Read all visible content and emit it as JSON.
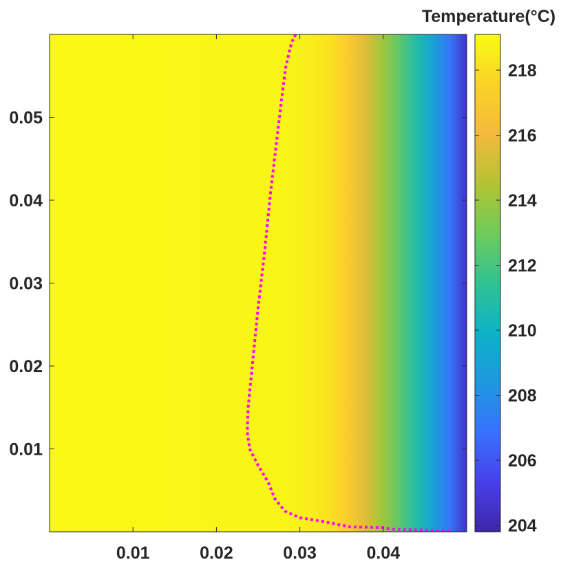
{
  "chart_data": {
    "type": "heatmap",
    "title": "",
    "xlabel": "",
    "ylabel": "",
    "xlim": [
      0,
      0.05
    ],
    "ylim": [
      0,
      0.06
    ],
    "x_ticks": [
      0.01,
      0.02,
      0.03,
      0.04
    ],
    "x_tick_labels": [
      "0.01",
      "0.02",
      "0.03",
      "0.04"
    ],
    "y_ticks": [
      0.01,
      0.02,
      0.03,
      0.04,
      0.05
    ],
    "y_tick_labels": [
      "0.01",
      "0.02",
      "0.03",
      "0.04",
      "0.05"
    ],
    "colorbar": {
      "title": "Temperature(°C)",
      "range": [
        203.8,
        219.1
      ],
      "ticks": [
        204,
        206,
        208,
        210,
        212,
        214,
        216,
        218
      ],
      "tick_labels": [
        "204",
        "206",
        "208",
        "210",
        "212",
        "214",
        "216",
        "218"
      ],
      "colormap": "parula"
    },
    "temperature_profile_along_x": [
      {
        "x": 0.0,
        "t": 219.0
      },
      {
        "x": 0.028,
        "t": 218.9
      },
      {
        "x": 0.032,
        "t": 218.5
      },
      {
        "x": 0.034,
        "t": 218.0
      },
      {
        "x": 0.036,
        "t": 217.0
      },
      {
        "x": 0.038,
        "t": 215.5
      },
      {
        "x": 0.04,
        "t": 214.0
      },
      {
        "x": 0.042,
        "t": 212.5
      },
      {
        "x": 0.044,
        "t": 210.8
      },
      {
        "x": 0.046,
        "t": 209.0
      },
      {
        "x": 0.048,
        "t": 207.0
      },
      {
        "x": 0.05,
        "t": 204.5
      }
    ],
    "boundary_curve": {
      "color": "#ff00ff",
      "style": "dotted",
      "points": [
        [
          0.0295,
          0.06
        ],
        [
          0.029,
          0.059
        ],
        [
          0.0283,
          0.056
        ],
        [
          0.0278,
          0.052
        ],
        [
          0.0272,
          0.047
        ],
        [
          0.0265,
          0.041
        ],
        [
          0.0258,
          0.034
        ],
        [
          0.025,
          0.027
        ],
        [
          0.0243,
          0.02
        ],
        [
          0.0238,
          0.015
        ],
        [
          0.0237,
          0.012
        ],
        [
          0.024,
          0.01
        ],
        [
          0.025,
          0.008
        ],
        [
          0.0262,
          0.006
        ],
        [
          0.027,
          0.004
        ],
        [
          0.0282,
          0.0025
        ],
        [
          0.03,
          0.0017
        ],
        [
          0.033,
          0.0012
        ],
        [
          0.036,
          0.0006
        ],
        [
          0.04,
          0.0005
        ],
        [
          0.041,
          0.0003
        ],
        [
          0.045,
          0.0002
        ],
        [
          0.048,
          0.0001
        ]
      ]
    }
  }
}
